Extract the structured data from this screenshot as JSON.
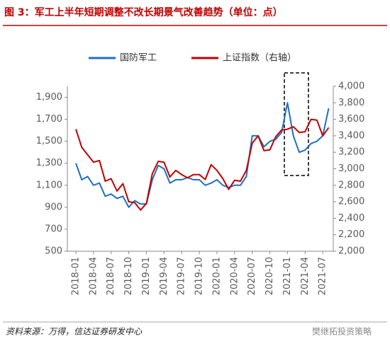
{
  "chart_data": {
    "type": "line",
    "title": "图 3：军工上半年短期调整不改长期景气改善趋势（单位：点）",
    "source": "资料来源：万得，信达证券研发中心",
    "watermark": "樊继拓投资策略",
    "categories": [
      "2018-01",
      null,
      null,
      "2018-04",
      null,
      null,
      "2018-07",
      null,
      null,
      "2018-10",
      null,
      null,
      "2019-01",
      null,
      null,
      "2019-04",
      null,
      null,
      "2019-07",
      null,
      null,
      "2019-10",
      null,
      null,
      "2020-01",
      null,
      null,
      "2020-04",
      null,
      null,
      "2020-07",
      null,
      null,
      "2020-10",
      null,
      null,
      "2021-01",
      null,
      null,
      "2021-04",
      null,
      null,
      "2021-07",
      null
    ],
    "series": [
      {
        "name": "国防军工",
        "color": "#1f6fc4",
        "values": [
          1300,
          1150,
          1180,
          1100,
          1120,
          1000,
          1020,
          980,
          1000,
          900,
          960,
          930,
          930,
          1150,
          1280,
          1250,
          1120,
          1150,
          1150,
          1170,
          1150,
          1150,
          1100,
          1120,
          1150,
          1100,
          1080,
          1100,
          1100,
          1180,
          1550,
          1550,
          1450,
          1500,
          1520,
          1580,
          1850,
          1550,
          1400,
          1420,
          1480,
          1500,
          1550,
          1800
        ]
      },
      {
        "name": "上证指数（右轴）",
        "color": "#c00000",
        "axis": "y2",
        "values": [
          3480,
          3260,
          3170,
          3080,
          3100,
          2850,
          2880,
          2730,
          2820,
          2600,
          2590,
          2500,
          2580,
          2940,
          3090,
          3080,
          2900,
          2980,
          2930,
          2890,
          2930,
          2930,
          2870,
          3050,
          2980,
          2880,
          2750,
          2860,
          2850,
          2980,
          3310,
          3400,
          3220,
          3230,
          3390,
          3470,
          3480,
          3510,
          3440,
          3450,
          3600,
          3590,
          3400,
          3500
        ]
      }
    ],
    "ylim": [
      500,
      2000
    ],
    "yticks": [
      500,
      700,
      900,
      {
        "value": 1100,
        "label": "1,100"
      },
      {
        "value": 1300,
        "label": "1,300"
      },
      {
        "value": 1500,
        "label": "1,500"
      },
      {
        "value": 1700,
        "label": "1,700"
      },
      {
        "value": 1900,
        "label": "1,900"
      }
    ],
    "y2lim": [
      2000,
      4000
    ],
    "y2ticks": [
      {
        "value": 2000,
        "label": "2,000"
      },
      {
        "value": 2200,
        "label": "2,200"
      },
      {
        "value": 2400,
        "label": "2,400"
      },
      {
        "value": 2600,
        "label": "2,600"
      },
      {
        "value": 2800,
        "label": "2,800"
      },
      {
        "value": 3000,
        "label": "3,000"
      },
      {
        "value": 3200,
        "label": "3,200"
      },
      {
        "value": 3400,
        "label": "3,400"
      },
      {
        "value": 3600,
        "label": "3,600"
      },
      {
        "value": 3800,
        "label": "3,800"
      },
      {
        "value": 4000,
        "label": "4,000"
      }
    ],
    "grid": false,
    "legend": "top"
  }
}
